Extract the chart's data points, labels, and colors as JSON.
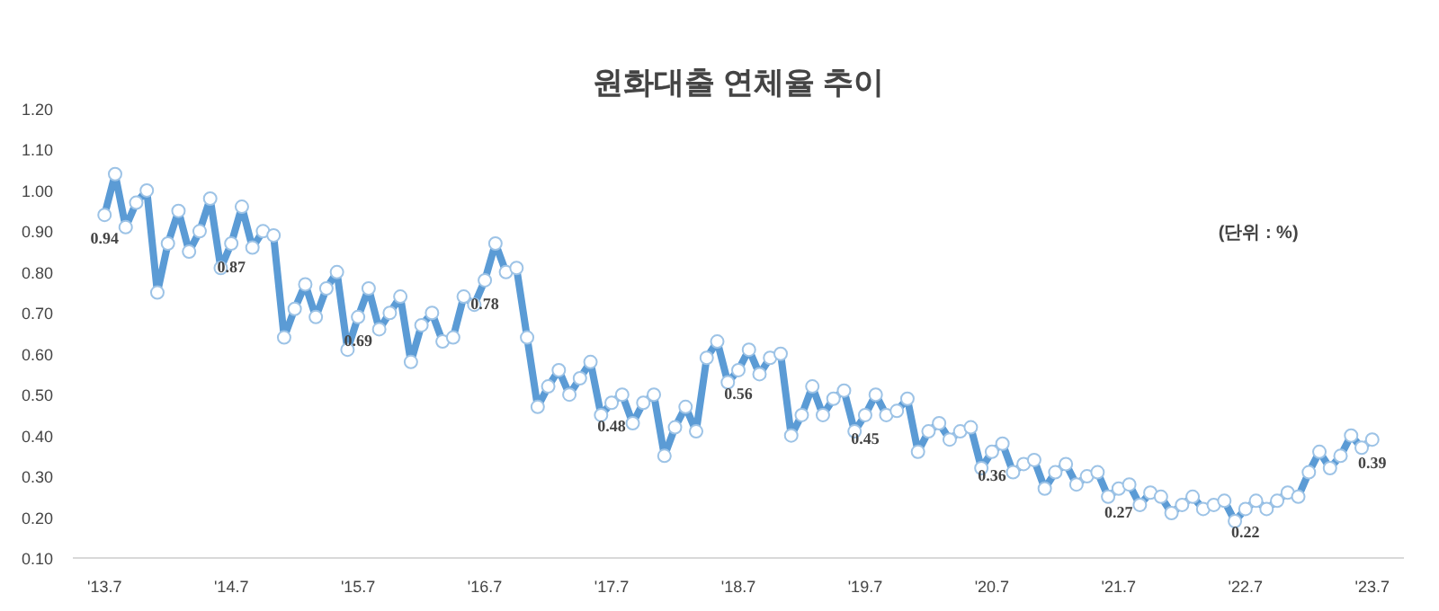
{
  "chart_data": {
    "type": "line",
    "title": "원화대출 연체율 추이",
    "annotations": [
      "(단위 : %)"
    ],
    "categories": [
      "'13.7",
      null,
      null,
      null,
      null,
      null,
      null,
      null,
      null,
      null,
      null,
      null,
      "'14.7",
      null,
      null,
      null,
      null,
      null,
      null,
      null,
      null,
      null,
      null,
      null,
      "'15.7",
      null,
      null,
      null,
      null,
      null,
      null,
      null,
      null,
      null,
      null,
      null,
      "'16.7",
      null,
      null,
      null,
      null,
      null,
      null,
      null,
      null,
      null,
      null,
      null,
      "'17.7",
      null,
      null,
      null,
      null,
      null,
      null,
      null,
      null,
      null,
      null,
      null,
      "'18.7",
      null,
      null,
      null,
      null,
      null,
      null,
      null,
      null,
      null,
      null,
      null,
      "'19.7",
      null,
      null,
      null,
      null,
      null,
      null,
      null,
      null,
      null,
      null,
      null,
      "'20.7",
      null,
      null,
      null,
      null,
      null,
      null,
      null,
      null,
      null,
      null,
      null,
      "'21.7",
      null,
      null,
      null,
      null,
      null,
      null,
      null,
      null,
      null,
      null,
      null,
      "'22.7",
      null,
      null,
      null,
      null,
      null,
      null,
      null,
      null,
      null,
      null,
      null,
      "'23.7"
    ],
    "series": [
      {
        "color": "#5b9bd5",
        "values": [
          0.94,
          1.04,
          0.91,
          0.97,
          1.0,
          0.75,
          0.87,
          0.95,
          0.85,
          0.9,
          0.98,
          0.81,
          0.87,
          0.96,
          0.86,
          0.9,
          0.89,
          0.64,
          0.71,
          0.77,
          0.69,
          0.76,
          0.8,
          0.61,
          0.69,
          0.76,
          0.66,
          0.7,
          0.74,
          0.58,
          0.67,
          0.7,
          0.63,
          0.64,
          0.74,
          0.72,
          0.78,
          0.87,
          0.8,
          0.81,
          0.64,
          0.47,
          0.52,
          0.56,
          0.5,
          0.54,
          0.58,
          0.45,
          0.48,
          0.5,
          0.43,
          0.48,
          0.5,
          0.35,
          0.42,
          0.47,
          0.41,
          0.59,
          0.63,
          0.53,
          0.56,
          0.61,
          0.55,
          0.59,
          0.6,
          0.4,
          0.45,
          0.52,
          0.45,
          0.49,
          0.51,
          0.41,
          0.45,
          0.5,
          0.45,
          0.46,
          0.49,
          0.36,
          0.41,
          0.43,
          0.39,
          0.41,
          0.42,
          0.32,
          0.36,
          0.38,
          0.31,
          0.33,
          0.34,
          0.27,
          0.31,
          0.33,
          0.28,
          0.3,
          0.31,
          0.25,
          0.27,
          0.28,
          0.23,
          0.26,
          0.25,
          0.21,
          0.23,
          0.25,
          0.22,
          0.23,
          0.24,
          0.19,
          0.22,
          0.24,
          0.22,
          0.24,
          0.26,
          0.25,
          0.31,
          0.36,
          0.32,
          0.35,
          0.4,
          0.37,
          0.39
        ],
        "value_labels": [
          "0.94",
          null,
          null,
          null,
          null,
          null,
          null,
          null,
          null,
          null,
          null,
          null,
          "0.87",
          null,
          null,
          null,
          null,
          null,
          null,
          null,
          null,
          null,
          null,
          null,
          "0.69",
          null,
          null,
          null,
          null,
          null,
          null,
          null,
          null,
          null,
          null,
          null,
          "0.78",
          null,
          null,
          null,
          null,
          null,
          null,
          null,
          null,
          null,
          null,
          null,
          "0.48",
          null,
          null,
          null,
          null,
          null,
          null,
          null,
          null,
          null,
          null,
          null,
          "0.56",
          null,
          null,
          null,
          null,
          null,
          null,
          null,
          null,
          null,
          null,
          null,
          "0.45",
          null,
          null,
          null,
          null,
          null,
          null,
          null,
          null,
          null,
          null,
          null,
          "0.36",
          null,
          null,
          null,
          null,
          null,
          null,
          null,
          null,
          null,
          null,
          null,
          "0.27",
          null,
          null,
          null,
          null,
          null,
          null,
          null,
          null,
          null,
          null,
          null,
          "0.22",
          null,
          null,
          null,
          null,
          null,
          null,
          null,
          null,
          null,
          null,
          null,
          "0.39"
        ]
      }
    ],
    "ylim": [
      0.1,
      1.2
    ],
    "yticks": [
      {
        "value": 0.1,
        "label": "0.10"
      },
      {
        "value": 0.2,
        "label": "0.20"
      },
      {
        "value": 0.3,
        "label": "0.30"
      },
      {
        "value": 0.4,
        "label": "0.40"
      },
      {
        "value": 0.5,
        "label": "0.50"
      },
      {
        "value": 0.6,
        "label": "0.60"
      },
      {
        "value": 0.7,
        "label": "0.70"
      },
      {
        "value": 0.8,
        "label": "0.80"
      },
      {
        "value": 0.9,
        "label": "0.90"
      },
      {
        "value": 1.0,
        "label": "1.00"
      },
      {
        "value": 1.1,
        "label": "1.10"
      },
      {
        "value": 1.2,
        "label": "1.20"
      }
    ],
    "marker": "circle",
    "grid": false
  }
}
